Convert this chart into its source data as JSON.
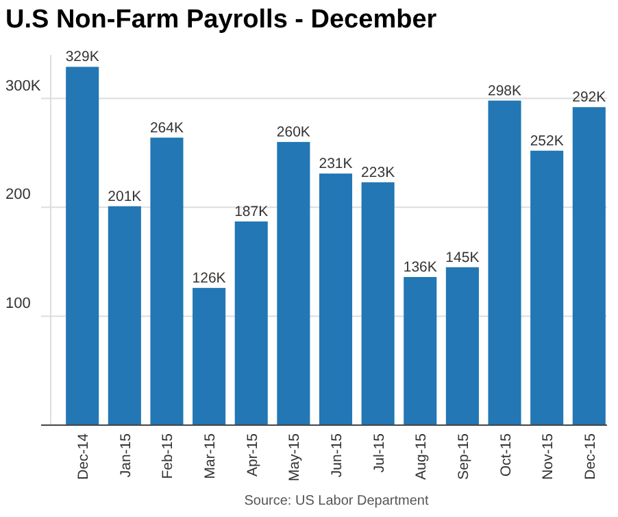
{
  "chart_data": {
    "type": "bar",
    "title": "U.S Non-Farm Payrolls - December",
    "categories": [
      "Dec-14",
      "Jan-15",
      "Feb-15",
      "Mar-15",
      "Apr-15",
      "May-15",
      "Jun-15",
      "Jul-15",
      "Aug-15",
      "Sep-15",
      "Oct-15",
      "Nov-15",
      "Dec-15"
    ],
    "values": [
      329,
      201,
      264,
      126,
      187,
      260,
      231,
      223,
      136,
      145,
      298,
      252,
      292
    ],
    "value_labels": [
      "329K",
      "201K",
      "264K",
      "126K",
      "187K",
      "260K",
      "231K",
      "223K",
      "136K",
      "145K",
      "298K",
      "252K",
      "292K"
    ],
    "color": "#2277b4",
    "ylim": [
      0,
      340
    ],
    "yticks": [
      {
        "value": 100,
        "label": "100"
      },
      {
        "value": 200,
        "label": "200"
      },
      {
        "value": 300,
        "label": "300K"
      }
    ],
    "grid": "y",
    "annotations": [
      "Source: US Labor Department"
    ]
  }
}
